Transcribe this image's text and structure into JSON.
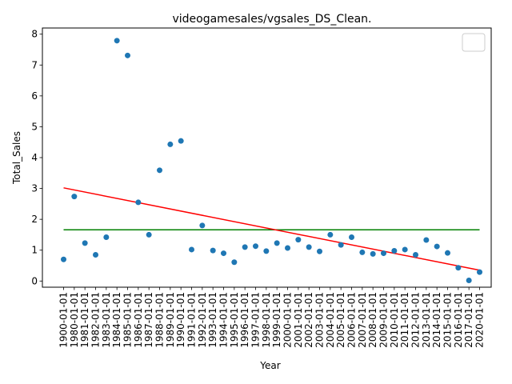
{
  "chart_data": {
    "type": "scatter",
    "title": "videogamesales/vgsales_DS_Clean.",
    "xlabel": "Year",
    "ylabel": "Total_Sales",
    "categories": [
      "1900-01-01",
      "1980-01-01",
      "1981-01-01",
      "1982-01-01",
      "1983-01-01",
      "1984-01-01",
      "1985-01-01",
      "1986-01-01",
      "1987-01-01",
      "1988-01-01",
      "1989-01-01",
      "1990-01-01",
      "1991-01-01",
      "1992-01-01",
      "1993-01-01",
      "1994-01-01",
      "1995-01-01",
      "1996-01-01",
      "1997-01-01",
      "1998-01-01",
      "1999-01-01",
      "2000-01-01",
      "2001-01-01",
      "2002-01-01",
      "2003-01-01",
      "2004-01-01",
      "2005-01-01",
      "2006-01-01",
      "2007-01-01",
      "2008-01-01",
      "2009-01-01",
      "2010-01-01",
      "2011-01-01",
      "2012-01-01",
      "2013-01-01",
      "2014-01-01",
      "2015-01-01",
      "2016-01-01",
      "2017-01-01",
      "2020-01-01"
    ],
    "values": [
      0.7,
      2.74,
      1.23,
      0.85,
      1.42,
      7.79,
      7.31,
      2.55,
      1.5,
      3.59,
      4.43,
      4.54,
      1.02,
      1.8,
      0.99,
      0.9,
      0.61,
      1.1,
      1.13,
      0.97,
      1.23,
      1.07,
      1.34,
      1.1,
      0.96,
      1.5,
      1.17,
      1.42,
      0.93,
      0.88,
      0.9,
      0.98,
      1.02,
      0.85,
      1.33,
      1.12,
      0.91,
      0.43,
      0.02,
      0.29
    ],
    "ylim": [
      -0.2,
      8.2
    ],
    "yticks": [
      "0",
      "1",
      "2",
      "3",
      "4",
      "5",
      "6",
      "7",
      "8"
    ],
    "mean_line": {
      "value": 1.66,
      "color": "#008000"
    },
    "trend_line": {
      "start": 3.02,
      "end": 0.35,
      "color": "#ff0000"
    },
    "marker_color": "#1f77b4",
    "grid": false,
    "legend": {
      "position": "upper right",
      "entries": []
    }
  }
}
